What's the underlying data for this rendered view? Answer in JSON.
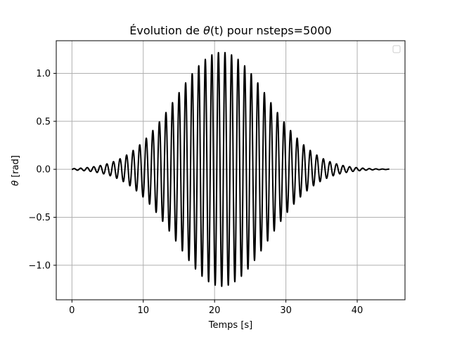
{
  "chart_data": {
    "type": "line",
    "title_prefix": "Évolution de ",
    "title_symbol": "θ",
    "title_arg": "(t)",
    "title_suffix": " pour nsteps=5000",
    "xlabel": "Temps [s]",
    "ylabel_symbol": "θ",
    "ylabel_unit": " [rad]",
    "xlim": [
      -2.2,
      46.7
    ],
    "ylim": [
      -1.36,
      1.34
    ],
    "xticks": [
      0,
      10,
      20,
      30,
      40
    ],
    "xtick_labels": [
      "0",
      "10",
      "20",
      "30",
      "40"
    ],
    "yticks": [
      -1.0,
      -0.5,
      0.0,
      0.5,
      1.0
    ],
    "ytick_labels": [
      "−1.0",
      "−0.5",
      "0.0",
      "0.5",
      "1.0"
    ],
    "grid": true,
    "legend": "top-right, empty",
    "series": [
      {
        "color": "#000000",
        "linewidth": 2,
        "x_range": [
          0,
          44.5
        ],
        "nsteps": 5000,
        "oscillation_period_s": 0.92,
        "peak_time_s": 21.0,
        "peak_amplitude_rad": 1.22,
        "envelope_half_width_s": 6.5,
        "peaks": [
          {
            "t": 19.2,
            "y": -0.84
          },
          {
            "t": 19.7,
            "y": 0.96
          },
          {
            "t": 20.1,
            "y": -1.09
          },
          {
            "t": 20.6,
            "y": 1.18
          },
          {
            "t": 21.0,
            "y": -1.23
          },
          {
            "t": 21.4,
            "y": 1.22
          },
          {
            "t": 21.9,
            "y": -1.13
          },
          {
            "t": 22.3,
            "y": 1.02
          },
          {
            "t": 22.8,
            "y": -0.89
          }
        ]
      }
    ]
  }
}
